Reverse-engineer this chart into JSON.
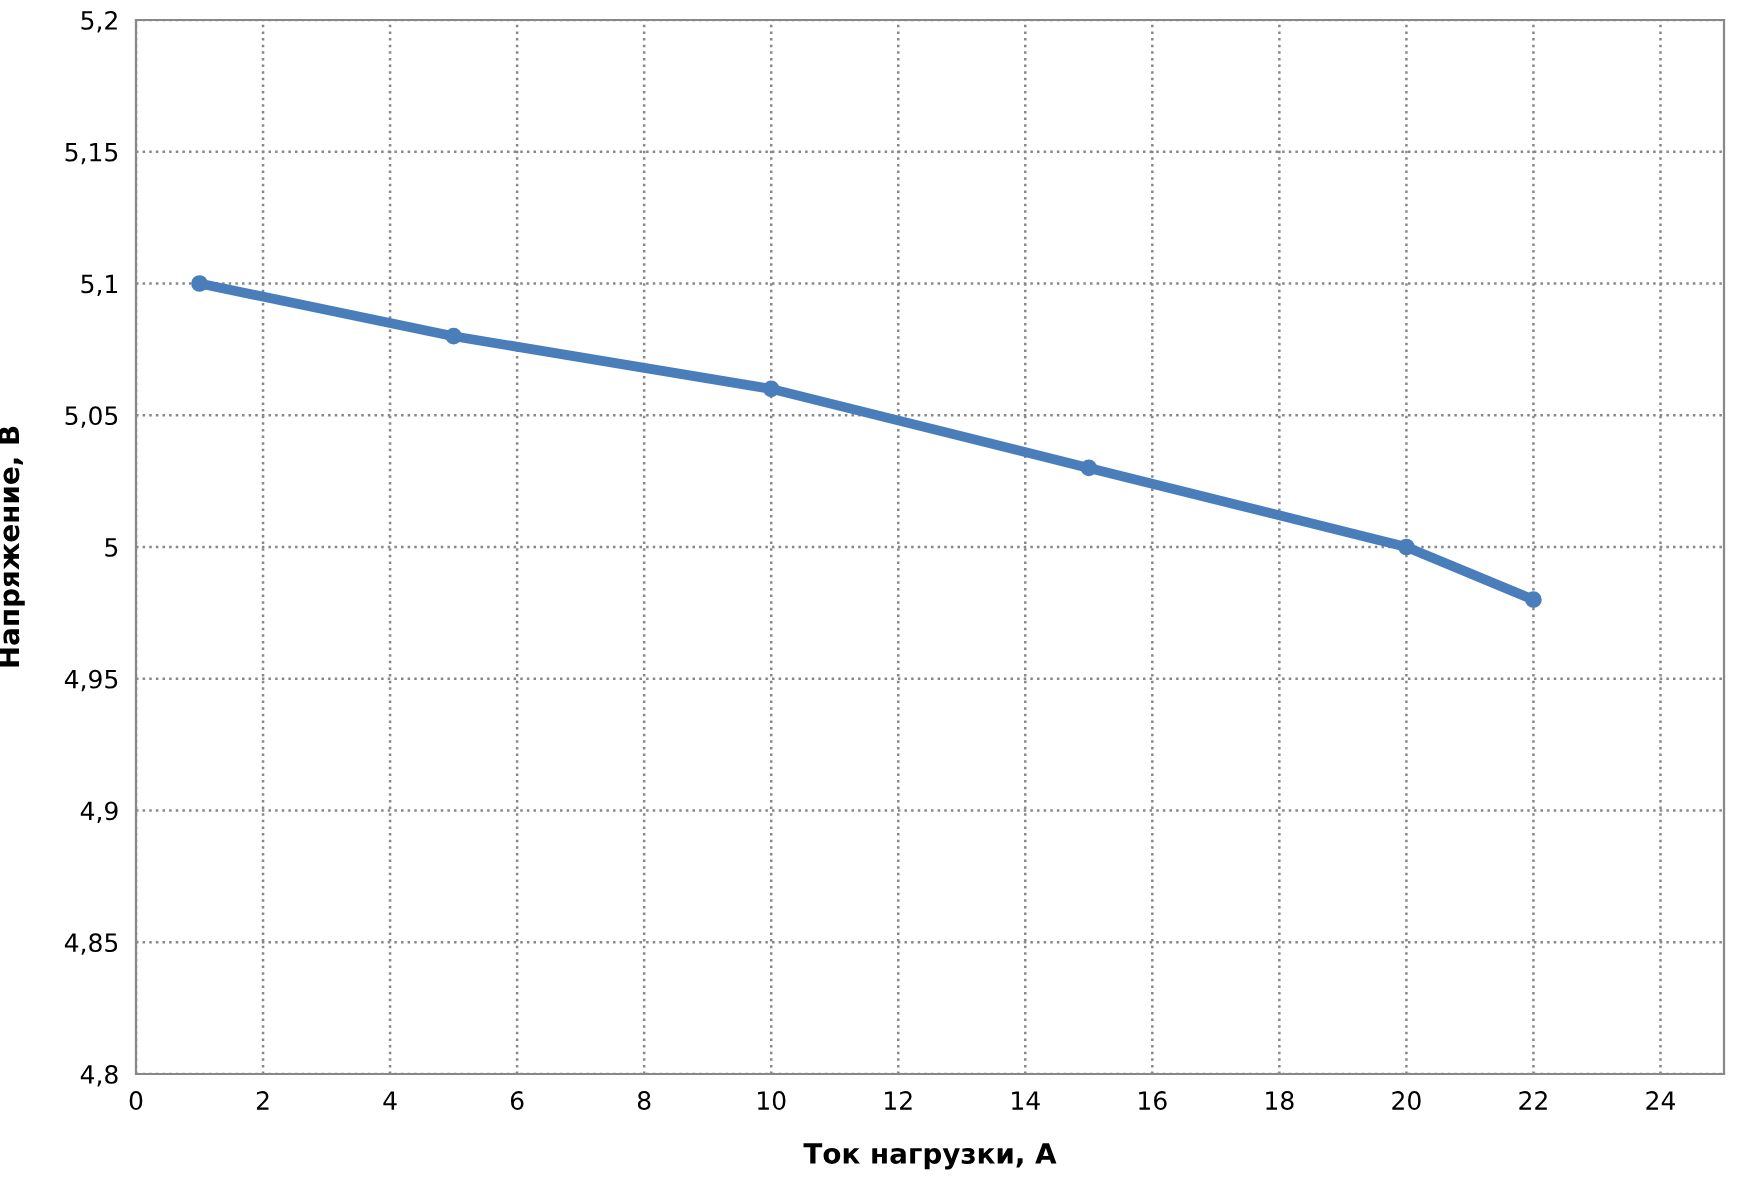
{
  "chart_data": {
    "type": "line",
    "xlabel": "Ток нагрузки, А",
    "ylabel": "Напряжение, В",
    "x": [
      1,
      5,
      10,
      15,
      20,
      22
    ],
    "series": [
      {
        "color": "#4a7ebb",
        "values": [
          5.1,
          5.08,
          5.06,
          5.03,
          5.0,
          4.98
        ]
      }
    ],
    "xlim": [
      0,
      25
    ],
    "xticks": [
      0,
      2,
      4,
      6,
      8,
      10,
      12,
      14,
      16,
      18,
      20,
      22,
      24
    ],
    "ylim": [
      4.8,
      5.2
    ],
    "yticks": [
      {
        "value": 4.8,
        "label": "4,8"
      },
      {
        "value": 4.85,
        "label": "4,85"
      },
      {
        "value": 4.9,
        "label": "4,9"
      },
      {
        "value": 4.95,
        "label": "4,95"
      },
      {
        "value": 5.0,
        "label": "5"
      },
      {
        "value": 5.05,
        "label": "5,05"
      },
      {
        "value": 5.1,
        "label": "5,1"
      },
      {
        "value": 5.15,
        "label": "5,15"
      },
      {
        "value": 5.2,
        "label": "5,2"
      }
    ],
    "grid": true,
    "marker": "circle",
    "line_style": "solid",
    "legend": false
  }
}
